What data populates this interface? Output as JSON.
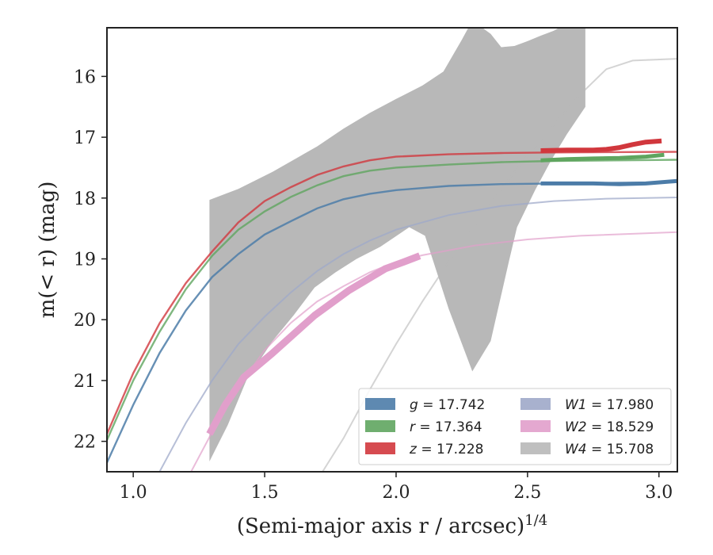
{
  "chart_data": {
    "type": "line",
    "xlabel": "(Semi-major axis r / arcsec)",
    "xlabel_exponent": "1/4",
    "ylabel": "m(< r) (mag)",
    "xlim": [
      0.9,
      3.07
    ],
    "ylim": [
      22.5,
      15.2
    ],
    "y_inverted": true,
    "x_ticks": [
      1.0,
      1.5,
      2.0,
      2.5,
      3.0
    ],
    "x_tick_labels": [
      "1.0",
      "1.5",
      "2.0",
      "2.5",
      "3.0"
    ],
    "y_ticks": [
      16,
      17,
      18,
      19,
      20,
      21,
      22
    ],
    "y_tick_labels": [
      "16",
      "17",
      "18",
      "19",
      "20",
      "21",
      "22"
    ],
    "grid": false,
    "legend_position": "lower-right",
    "series": [
      {
        "name": "g = 17.742",
        "band": "g",
        "value": "17.742",
        "color": "#4c7ca8",
        "kind": "measured+model",
        "model": [
          [
            0.9,
            22.35
          ],
          [
            1.0,
            21.4
          ],
          [
            1.1,
            20.55
          ],
          [
            1.2,
            19.85
          ],
          [
            1.3,
            19.3
          ],
          [
            1.4,
            18.92
          ],
          [
            1.5,
            18.6
          ],
          [
            1.6,
            18.38
          ],
          [
            1.7,
            18.17
          ],
          [
            1.8,
            18.02
          ],
          [
            1.9,
            17.93
          ],
          [
            2.0,
            17.87
          ],
          [
            2.2,
            17.8
          ],
          [
            2.4,
            17.77
          ],
          [
            2.6,
            17.76
          ],
          [
            3.07,
            17.74
          ]
        ],
        "measured": [
          [
            2.55,
            17.76
          ],
          [
            2.65,
            17.76
          ],
          [
            2.75,
            17.76
          ],
          [
            2.85,
            17.77
          ],
          [
            2.95,
            17.76
          ],
          [
            3.07,
            17.72
          ]
        ],
        "band_width": 0.05
      },
      {
        "name": "r = 17.364",
        "band": "r",
        "value": "17.364",
        "color": "#5fa55f",
        "kind": "measured+model",
        "model": [
          [
            0.9,
            21.98
          ],
          [
            1.0,
            21.0
          ],
          [
            1.1,
            20.2
          ],
          [
            1.2,
            19.5
          ],
          [
            1.3,
            18.95
          ],
          [
            1.4,
            18.52
          ],
          [
            1.5,
            18.22
          ],
          [
            1.6,
            17.98
          ],
          [
            1.7,
            17.79
          ],
          [
            1.8,
            17.64
          ],
          [
            1.9,
            17.55
          ],
          [
            2.0,
            17.5
          ],
          [
            2.2,
            17.45
          ],
          [
            2.4,
            17.41
          ],
          [
            2.6,
            17.39
          ],
          [
            3.07,
            17.37
          ]
        ],
        "measured": [
          [
            2.55,
            17.38
          ],
          [
            2.65,
            17.36
          ],
          [
            2.75,
            17.35
          ],
          [
            2.85,
            17.34
          ],
          [
            2.95,
            17.32
          ],
          [
            3.02,
            17.29
          ]
        ],
        "band_width": 0.06
      },
      {
        "name": "z = 17.228",
        "band": "z",
        "value": "17.228",
        "color": "#d1373d",
        "kind": "measured+model",
        "model": [
          [
            0.9,
            21.88
          ],
          [
            1.0,
            20.88
          ],
          [
            1.1,
            20.06
          ],
          [
            1.2,
            19.4
          ],
          [
            1.3,
            18.88
          ],
          [
            1.4,
            18.4
          ],
          [
            1.5,
            18.05
          ],
          [
            1.6,
            17.82
          ],
          [
            1.7,
            17.62
          ],
          [
            1.8,
            17.48
          ],
          [
            1.9,
            17.38
          ],
          [
            2.0,
            17.32
          ],
          [
            2.2,
            17.28
          ],
          [
            2.4,
            17.26
          ],
          [
            2.6,
            17.25
          ],
          [
            3.07,
            17.24
          ]
        ],
        "measured": [
          [
            2.55,
            17.22
          ],
          [
            2.65,
            17.21
          ],
          [
            2.75,
            17.21
          ],
          [
            2.8,
            17.2
          ],
          [
            2.85,
            17.17
          ],
          [
            2.9,
            17.12
          ],
          [
            2.95,
            17.08
          ],
          [
            3.01,
            17.06
          ]
        ],
        "band_width": 0.08
      },
      {
        "name": "W1 = 17.980",
        "band": "W1",
        "value": "17.980",
        "color": "#9fa9c9",
        "kind": "model",
        "model": [
          [
            1.1,
            22.5
          ],
          [
            1.2,
            21.7
          ],
          [
            1.3,
            21.0
          ],
          [
            1.4,
            20.4
          ],
          [
            1.5,
            19.95
          ],
          [
            1.6,
            19.55
          ],
          [
            1.7,
            19.2
          ],
          [
            1.8,
            18.92
          ],
          [
            1.9,
            18.7
          ],
          [
            2.0,
            18.52
          ],
          [
            2.2,
            18.28
          ],
          [
            2.4,
            18.13
          ],
          [
            2.6,
            18.05
          ],
          [
            2.8,
            18.01
          ],
          [
            3.07,
            17.99
          ]
        ]
      },
      {
        "name": "W2 = 18.529",
        "band": "W2",
        "value": "18.529",
        "color": "#e19fcb",
        "kind": "measured+model",
        "model": [
          [
            1.22,
            22.5
          ],
          [
            1.3,
            21.85
          ],
          [
            1.4,
            21.1
          ],
          [
            1.5,
            20.5
          ],
          [
            1.6,
            20.05
          ],
          [
            1.7,
            19.7
          ],
          [
            1.8,
            19.45
          ],
          [
            1.9,
            19.22
          ],
          [
            2.0,
            19.05
          ],
          [
            2.1,
            18.94
          ],
          [
            2.3,
            18.78
          ],
          [
            2.5,
            18.68
          ],
          [
            2.7,
            18.62
          ],
          [
            3.07,
            18.56
          ]
        ],
        "measured": [
          [
            1.29,
            21.88
          ],
          [
            1.35,
            21.4
          ],
          [
            1.42,
            20.95
          ],
          [
            1.53,
            20.55
          ],
          [
            1.69,
            19.93
          ],
          [
            1.82,
            19.52
          ],
          [
            1.96,
            19.16
          ],
          [
            2.03,
            19.05
          ],
          [
            2.09,
            18.95
          ]
        ],
        "band_width": 0.12
      },
      {
        "name": "W4 = 15.708",
        "band": "W4",
        "value": "15.708",
        "color": "#b8b8b8",
        "kind": "band+model",
        "model": [
          [
            1.72,
            22.5
          ],
          [
            1.8,
            21.95
          ],
          [
            1.9,
            21.15
          ],
          [
            2.0,
            20.4
          ],
          [
            2.1,
            19.7
          ],
          [
            2.2,
            19.05
          ],
          [
            2.3,
            18.45
          ],
          [
            2.4,
            17.85
          ],
          [
            2.5,
            17.3
          ],
          [
            2.6,
            16.8
          ],
          [
            2.7,
            16.3
          ],
          [
            2.8,
            15.88
          ],
          [
            2.9,
            15.74
          ],
          [
            3.07,
            15.71
          ]
        ],
        "upper": [
          [
            1.29,
            18.03
          ],
          [
            1.4,
            17.85
          ],
          [
            1.53,
            17.57
          ],
          [
            1.7,
            17.15
          ],
          [
            1.8,
            16.86
          ],
          [
            1.9,
            16.6
          ],
          [
            2.0,
            16.37
          ],
          [
            2.1,
            16.15
          ],
          [
            2.18,
            15.92
          ],
          [
            2.25,
            15.4
          ],
          [
            2.29,
            15.08
          ],
          [
            2.36,
            15.3
          ],
          [
            2.4,
            15.52
          ],
          [
            2.45,
            15.5
          ],
          [
            2.5,
            15.42
          ],
          [
            2.55,
            15.33
          ],
          [
            2.6,
            15.25
          ],
          [
            2.64,
            15.15
          ],
          [
            2.72,
            15.2
          ]
        ],
        "lower": [
          [
            1.29,
            22.33
          ],
          [
            1.36,
            21.73
          ],
          [
            1.43,
            21.0
          ],
          [
            1.53,
            20.35
          ],
          [
            1.61,
            19.93
          ],
          [
            1.69,
            19.47
          ],
          [
            1.77,
            19.22
          ],
          [
            1.85,
            19.0
          ],
          [
            1.94,
            18.8
          ],
          [
            2.05,
            18.48
          ],
          [
            2.11,
            18.62
          ],
          [
            2.2,
            19.82
          ],
          [
            2.29,
            20.85
          ],
          [
            2.36,
            20.35
          ],
          [
            2.43,
            19.03
          ],
          [
            2.46,
            18.48
          ],
          [
            2.53,
            17.86
          ],
          [
            2.59,
            17.38
          ],
          [
            2.65,
            16.95
          ],
          [
            2.72,
            16.5
          ]
        ]
      }
    ]
  },
  "legend": {
    "items": [
      {
        "label": "g = 17.742",
        "color": "#4c7ca8"
      },
      {
        "label": "r = 17.364",
        "color": "#5fa55f"
      },
      {
        "label": "z = 17.228",
        "color": "#d1373d"
      },
      {
        "label": "W1 = 17.980",
        "color": "#9fa9c9"
      },
      {
        "label": "W2 = 18.529",
        "color": "#e19fcb"
      },
      {
        "label": "W4 = 15.708",
        "color": "#b8b8b8"
      }
    ]
  }
}
